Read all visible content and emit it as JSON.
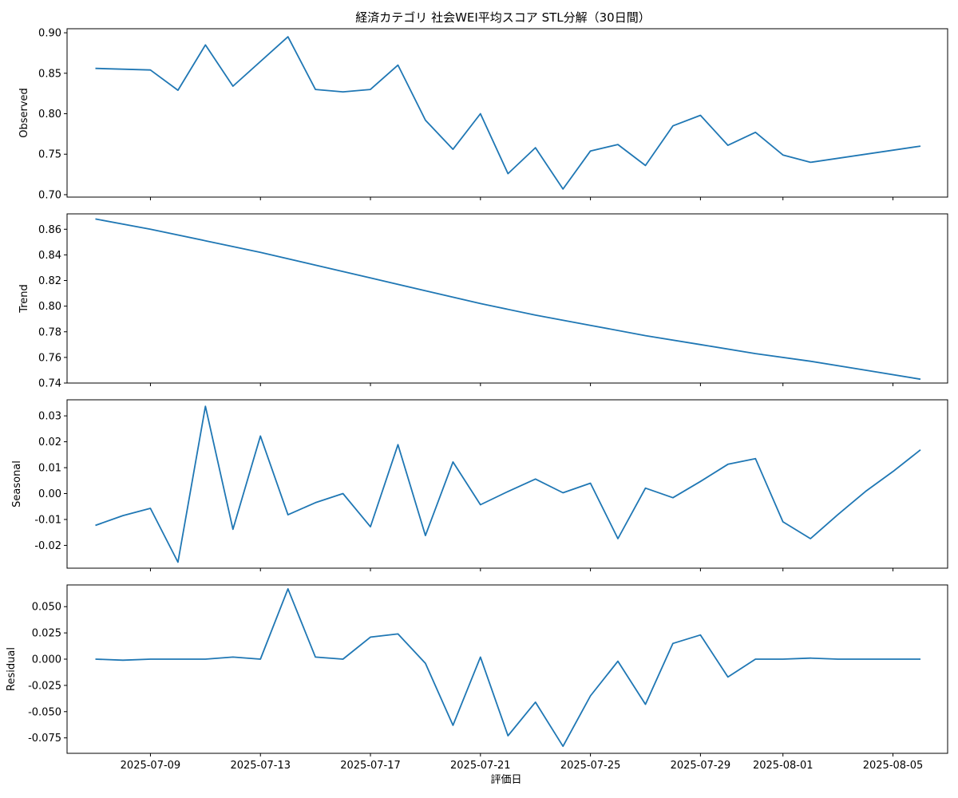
{
  "title": "経済カテゴリ 社会WEI平均スコア STL分解（30日間）",
  "xlabel": "評価日",
  "colors": {
    "line": "#1f77b4",
    "axis": "#000000"
  },
  "x_ticks": [
    "2025-07-09",
    "2025-07-13",
    "2025-07-17",
    "2025-07-21",
    "2025-07-25",
    "2025-07-29",
    "2025-08-01",
    "2025-08-05"
  ],
  "chart_data": [
    {
      "type": "line",
      "ylabel": "Observed",
      "ylim": [
        0.697,
        0.905
      ],
      "yticks": [
        "0.70",
        "0.75",
        "0.80",
        "0.85",
        "0.90"
      ],
      "x": [
        "2025-07-07",
        "2025-07-09",
        "2025-07-10",
        "2025-07-11",
        "2025-07-12",
        "2025-07-14",
        "2025-07-15",
        "2025-07-16",
        "2025-07-17",
        "2025-07-18",
        "2025-07-19",
        "2025-07-20",
        "2025-07-21",
        "2025-07-22",
        "2025-07-23",
        "2025-07-24",
        "2025-07-25",
        "2025-07-26",
        "2025-07-27",
        "2025-07-28",
        "2025-07-29",
        "2025-07-30",
        "2025-07-31",
        "2025-08-01",
        "2025-08-02",
        "2025-08-06"
      ],
      "y": [
        0.856,
        0.854,
        0.829,
        0.885,
        0.834,
        0.895,
        0.83,
        0.827,
        0.83,
        0.86,
        0.792,
        0.756,
        0.8,
        0.726,
        0.758,
        0.707,
        0.754,
        0.762,
        0.736,
        0.785,
        0.798,
        0.761,
        0.777,
        0.749,
        0.74,
        0.76
      ]
    },
    {
      "type": "line",
      "ylabel": "Trend",
      "ylim": [
        0.74,
        0.872
      ],
      "yticks": [
        "0.74",
        "0.76",
        "0.78",
        "0.80",
        "0.82",
        "0.84",
        "0.86"
      ],
      "x": [
        "2025-07-07",
        "2025-07-09",
        "2025-07-11",
        "2025-07-13",
        "2025-07-15",
        "2025-07-17",
        "2025-07-19",
        "2025-07-21",
        "2025-07-23",
        "2025-07-25",
        "2025-07-27",
        "2025-07-29",
        "2025-07-31",
        "2025-08-02",
        "2025-08-04",
        "2025-08-06"
      ],
      "y": [
        0.868,
        0.86,
        0.851,
        0.842,
        0.832,
        0.822,
        0.812,
        0.802,
        0.793,
        0.785,
        0.777,
        0.77,
        0.763,
        0.757,
        0.75,
        0.743
      ]
    },
    {
      "type": "line",
      "ylabel": "Seasonal",
      "ylim": [
        -0.0288,
        0.0362
      ],
      "yticks": [
        "-0.02",
        "-0.01",
        "0.00",
        "0.01",
        "0.02",
        "0.03"
      ],
      "x": [
        "2025-07-07",
        "2025-07-08",
        "2025-07-09",
        "2025-07-10",
        "2025-07-11",
        "2025-07-12",
        "2025-07-13",
        "2025-07-14",
        "2025-07-15",
        "2025-07-16",
        "2025-07-17",
        "2025-07-18",
        "2025-07-19",
        "2025-07-20",
        "2025-07-21",
        "2025-07-22",
        "2025-07-23",
        "2025-07-24",
        "2025-07-25",
        "2025-07-26",
        "2025-07-27",
        "2025-07-28",
        "2025-07-29",
        "2025-07-30",
        "2025-07-31",
        "2025-08-01",
        "2025-08-02",
        "2025-08-03",
        "2025-08-04",
        "2025-08-05",
        "2025-08-06"
      ],
      "y": [
        -0.0123,
        -0.0085,
        -0.0057,
        -0.0265,
        0.0337,
        -0.0138,
        0.0222,
        -0.0082,
        -0.0035,
        0.0,
        -0.0128,
        0.0189,
        -0.0162,
        0.0122,
        -0.0043,
        0.0008,
        0.0056,
        0.0003,
        0.004,
        -0.0174,
        0.0021,
        -0.0016,
        0.0047,
        0.0113,
        0.0135,
        -0.0109,
        -0.0174,
        -0.0081,
        0.0008,
        0.0085,
        0.0169
      ]
    },
    {
      "type": "line",
      "ylabel": "Residual",
      "ylim": [
        -0.0897,
        0.0707
      ],
      "yticks": [
        "-0.075",
        "-0.050",
        "-0.025",
        "0.000",
        "0.025",
        "0.050"
      ],
      "x": [
        "2025-07-07",
        "2025-07-08",
        "2025-07-09",
        "2025-07-10",
        "2025-07-11",
        "2025-07-12",
        "2025-07-13",
        "2025-07-14",
        "2025-07-15",
        "2025-07-16",
        "2025-07-17",
        "2025-07-18",
        "2025-07-19",
        "2025-07-20",
        "2025-07-21",
        "2025-07-22",
        "2025-07-23",
        "2025-07-24",
        "2025-07-25",
        "2025-07-26",
        "2025-07-27",
        "2025-07-28",
        "2025-07-29",
        "2025-07-30",
        "2025-07-31",
        "2025-08-01",
        "2025-08-02",
        "2025-08-03",
        "2025-08-04",
        "2025-08-05",
        "2025-08-06"
      ],
      "y": [
        0.0,
        -0.001,
        0.0,
        0.0,
        0.0,
        0.002,
        0.0,
        0.067,
        0.002,
        0.0,
        0.021,
        0.024,
        -0.004,
        -0.063,
        0.002,
        -0.073,
        -0.041,
        -0.083,
        -0.035,
        -0.002,
        -0.043,
        0.015,
        0.023,
        -0.017,
        0.0,
        0.0,
        0.001,
        0.0,
        0.0,
        0.0,
        0.0
      ]
    }
  ]
}
